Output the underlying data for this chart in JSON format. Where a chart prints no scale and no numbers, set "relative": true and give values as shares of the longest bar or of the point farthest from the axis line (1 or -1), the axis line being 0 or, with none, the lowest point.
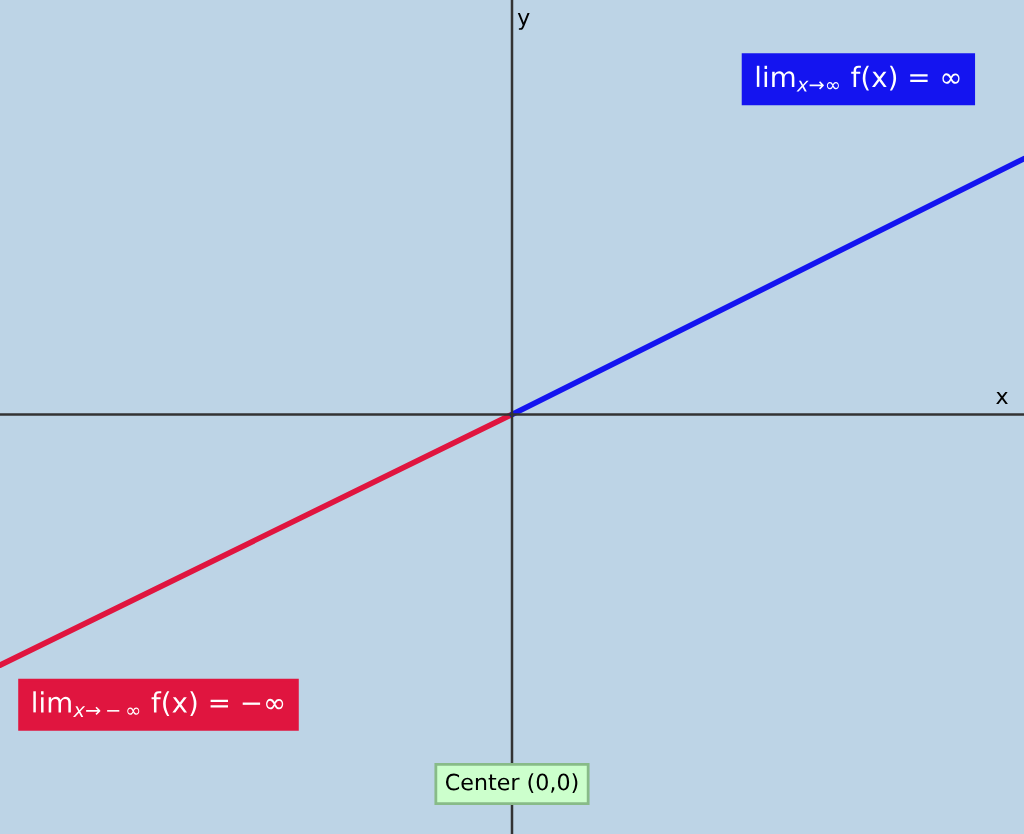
{
  "chart_data": {
    "type": "line",
    "relative": true,
    "categories": [
      null,
      null,
      null
    ],
    "series": [
      {
        "color": "#e0153f",
        "values": [
          -0.98,
          0,
          null
        ]
      },
      {
        "color": "#1414f0",
        "values": [
          null,
          0,
          1
        ]
      }
    ],
    "annotations": [
      "lim$_{x→∞}$ f(x) = ∞",
      "lim$_{x→−∞}$ f(x) = −∞",
      "Center (0,0)",
      "x",
      "y"
    ]
  }
}
